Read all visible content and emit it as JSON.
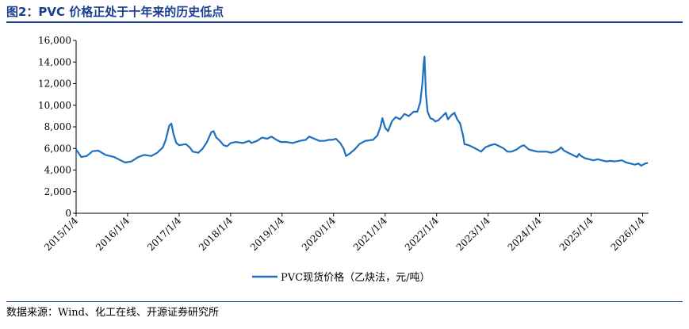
{
  "title": "图2：PVC 价格正处于十年来的历史低点",
  "source": "数据来源：Wind、化工在线、开源证券研究所",
  "chart_data": {
    "type": "line",
    "title": "图2：PVC 价格正处于十年来的历史低点",
    "xlabel": "",
    "ylabel": "",
    "ylim": [
      0,
      16000
    ],
    "xlim": [
      "2015/1/4",
      "2026/2/15"
    ],
    "grid": false,
    "legend_position": "bottom",
    "y_ticks": [
      {
        "value": 0,
        "label": "0"
      },
      {
        "value": 2000,
        "label": "2,000"
      },
      {
        "value": 4000,
        "label": "4,000"
      },
      {
        "value": 6000,
        "label": "6,000"
      },
      {
        "value": 8000,
        "label": "8,000"
      },
      {
        "value": 10000,
        "label": "10,000"
      },
      {
        "value": 12000,
        "label": "12,000"
      },
      {
        "value": 14000,
        "label": "14,000"
      },
      {
        "value": 16000,
        "label": "16,000"
      }
    ],
    "x_ticks": [
      {
        "value": "2015/1/4",
        "label": "2015/1/4"
      },
      {
        "value": "2016/1/4",
        "label": "2016/1/4"
      },
      {
        "value": "2017/1/4",
        "label": "2017/1/4"
      },
      {
        "value": "2018/1/4",
        "label": "2018/1/4"
      },
      {
        "value": "2019/1/4",
        "label": "2019/1/4"
      },
      {
        "value": "2020/1/4",
        "label": "2020/1/4"
      },
      {
        "value": "2021/1/4",
        "label": "2021/1/4"
      },
      {
        "value": "2022/1/4",
        "label": "2022/1/4"
      },
      {
        "value": "2023/1/4",
        "label": "2023/1/4"
      },
      {
        "value": "2024/1/4",
        "label": "2024/1/4"
      },
      {
        "value": "2025/1/4",
        "label": "2025/1/4"
      },
      {
        "value": "2026/1/4",
        "label": "2026/1/4"
      }
    ],
    "series": [
      {
        "name": "PVC现货价格（乙炔法，元/吨）",
        "color": "#1f6fc0",
        "points": [
          [
            "2015/1/4",
            5900
          ],
          [
            "2015/2/10",
            5200
          ],
          [
            "2015/3/20",
            5300
          ],
          [
            "2015/5/1",
            5750
          ],
          [
            "2015/6/10",
            5800
          ],
          [
            "2015/8/1",
            5400
          ],
          [
            "2015/10/1",
            5200
          ],
          [
            "2015/11/15",
            4900
          ],
          [
            "2015/12/20",
            4700
          ],
          [
            "2016/2/1",
            4800
          ],
          [
            "2016/3/20",
            5200
          ],
          [
            "2016/5/1",
            5400
          ],
          [
            "2016/6/20",
            5300
          ],
          [
            "2016/8/1",
            5600
          ],
          [
            "2016/9/10",
            6100
          ],
          [
            "2016/10/1",
            6800
          ],
          [
            "2016/10/25",
            8100
          ],
          [
            "2016/11/10",
            8300
          ],
          [
            "2016/11/25",
            7300
          ],
          [
            "2016/12/15",
            6500
          ],
          [
            "2017/1/4",
            6300
          ],
          [
            "2017/2/20",
            6400
          ],
          [
            "2017/3/20",
            6100
          ],
          [
            "2017/4/10",
            5700
          ],
          [
            "2017/5/20",
            5600
          ],
          [
            "2017/6/20",
            6000
          ],
          [
            "2017/7/20",
            6600
          ],
          [
            "2017/8/20",
            7500
          ],
          [
            "2017/9/5",
            7600
          ],
          [
            "2017/9/25",
            7000
          ],
          [
            "2017/10/20",
            6700
          ],
          [
            "2017/11/15",
            6300
          ],
          [
            "2017/12/10",
            6200
          ],
          [
            "2018/1/4",
            6500
          ],
          [
            "2018/2/10",
            6600
          ],
          [
            "2018/4/1",
            6500
          ],
          [
            "2018/5/15",
            6700
          ],
          [
            "2018/6/1",
            6500
          ],
          [
            "2018/7/10",
            6700
          ],
          [
            "2018/8/15",
            7000
          ],
          [
            "2018/9/20",
            6900
          ],
          [
            "2018/10/20",
            7100
          ],
          [
            "2018/11/25",
            6800
          ],
          [
            "2018/12/25",
            6600
          ],
          [
            "2019/2/1",
            6600
          ],
          [
            "2019/3/20",
            6500
          ],
          [
            "2019/5/10",
            6700
          ],
          [
            "2019/6/20",
            6800
          ],
          [
            "2019/7/15",
            7100
          ],
          [
            "2019/8/20",
            6900
          ],
          [
            "2019/9/25",
            6700
          ],
          [
            "2019/11/1",
            6700
          ],
          [
            "2019/12/1",
            6800
          ],
          [
            "2019/12/25",
            6800
          ],
          [
            "2020/1/20",
            6900
          ],
          [
            "2020/2/20",
            6500
          ],
          [
            "2020/3/15",
            6000
          ],
          [
            "2020/4/1",
            5300
          ],
          [
            "2020/4/25",
            5500
          ],
          [
            "2020/6/1",
            5900
          ],
          [
            "2020/7/5",
            6400
          ],
          [
            "2020/8/15",
            6700
          ],
          [
            "2020/10/10",
            6800
          ],
          [
            "2020/11/10",
            7200
          ],
          [
            "2020/12/1",
            8000
          ],
          [
            "2020/12/15",
            8800
          ],
          [
            "2021/1/4",
            7900
          ],
          [
            "2021/1/25",
            7600
          ],
          [
            "2021/2/20",
            8500
          ],
          [
            "2021/3/20",
            8900
          ],
          [
            "2021/4/20",
            8700
          ],
          [
            "2021/5/20",
            9200
          ],
          [
            "2021/6/20",
            9000
          ],
          [
            "2021/7/25",
            9400
          ],
          [
            "2021/8/20",
            9400
          ],
          [
            "2021/9/10",
            10300
          ],
          [
            "2021/9/25",
            12100
          ],
          [
            "2021/10/5",
            13900
          ],
          [
            "2021/10/10",
            14500
          ],
          [
            "2021/10/20",
            11000
          ],
          [
            "2021/11/1",
            9400
          ],
          [
            "2021/11/20",
            8800
          ],
          [
            "2021/12/10",
            8700
          ],
          [
            "2021/12/25",
            8500
          ],
          [
            "2022/1/15",
            8600
          ],
          [
            "2022/2/15",
            9000
          ],
          [
            "2022/3/10",
            9300
          ],
          [
            "2022/3/25",
            8700
          ],
          [
            "2022/4/20",
            9100
          ],
          [
            "2022/5/10",
            9300
          ],
          [
            "2022/5/30",
            8700
          ],
          [
            "2022/6/20",
            8300
          ],
          [
            "2022/7/10",
            7200
          ],
          [
            "2022/7/20",
            6400
          ],
          [
            "2022/8/20",
            6300
          ],
          [
            "2022/9/20",
            6100
          ],
          [
            "2022/10/20",
            5900
          ],
          [
            "2022/11/15",
            5700
          ],
          [
            "2022/12/15",
            6100
          ],
          [
            "2023/1/20",
            6300
          ],
          [
            "2023/2/20",
            6400
          ],
          [
            "2023/3/25",
            6200
          ],
          [
            "2023/4/25",
            6000
          ],
          [
            "2023/5/20",
            5700
          ],
          [
            "2023/6/20",
            5700
          ],
          [
            "2023/7/25",
            5900
          ],
          [
            "2023/8/25",
            6200
          ],
          [
            "2023/9/15",
            6300
          ],
          [
            "2023/10/20",
            5900
          ],
          [
            "2023/11/20",
            5800
          ],
          [
            "2023/12/20",
            5700
          ],
          [
            "2024/1/20",
            5700
          ],
          [
            "2024/2/25",
            5700
          ],
          [
            "2024/3/25",
            5600
          ],
          [
            "2024/4/25",
            5700
          ],
          [
            "2024/5/20",
            5900
          ],
          [
            "2024/6/5",
            6100
          ],
          [
            "2024/6/25",
            5800
          ],
          [
            "2024/7/25",
            5600
          ],
          [
            "2024/8/25",
            5400
          ],
          [
            "2024/9/25",
            5200
          ],
          [
            "2024/10/10",
            5500
          ],
          [
            "2024/10/25",
            5300
          ],
          [
            "2024/11/20",
            5100
          ],
          [
            "2024/12/20",
            5000
          ],
          [
            "2025/1/20",
            4900
          ],
          [
            "2025/2/20",
            5000
          ],
          [
            "2025/3/20",
            4900
          ],
          [
            "2025/4/20",
            4800
          ],
          [
            "2025/5/20",
            4850
          ],
          [
            "2025/6/20",
            4800
          ],
          [
            "2025/7/15",
            4850
          ],
          [
            "2025/8/10",
            4900
          ],
          [
            "2025/9/10",
            4700
          ],
          [
            "2025/10/10",
            4600
          ],
          [
            "2025/11/10",
            4500
          ],
          [
            "2025/12/5",
            4600
          ],
          [
            "2025/12/25",
            4400
          ],
          [
            "2026/1/20",
            4600
          ],
          [
            "2026/2/10",
            4650
          ]
        ]
      }
    ]
  }
}
